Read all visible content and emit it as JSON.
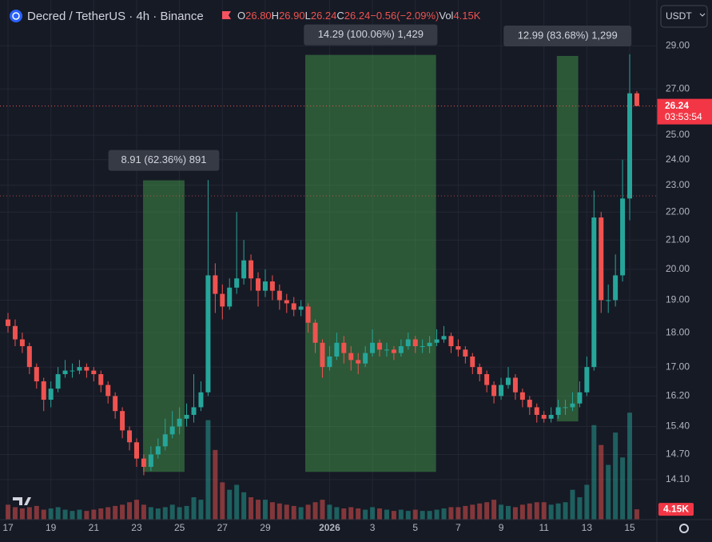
{
  "chart_data": {
    "type": "candlestick",
    "title": "Decred / TetherUS · 4h · Binance",
    "legend": [
      {
        "key": "O",
        "value": {
          "value": 26.8,
          "label": "26.80"
        }
      },
      {
        "key": "H",
        "value": {
          "value": 26.9,
          "label": "26.90"
        }
      },
      {
        "key": "L",
        "value": {
          "value": 26.24,
          "label": "26.24"
        }
      },
      {
        "key": "C",
        "value": {
          "value": 26.24,
          "label": "26.24"
        }
      }
    ],
    "change": {
      "value": -0.56,
      "label": "−0.56"
    },
    "change_pct": {
      "value": -2.09,
      "label": "(−2.09%)"
    },
    "volume_key": "Vol",
    "volume_last": {
      "value": 4150,
      "label": "4.15K"
    },
    "currency": "USDT",
    "open": [
      18.4,
      18.2,
      17.8,
      17.6,
      17.0,
      16.6,
      16.1,
      16.4,
      16.8,
      16.9,
      16.9,
      17.0,
      16.9,
      16.8,
      16.5,
      16.2,
      15.8,
      15.3,
      15.0,
      14.6,
      14.4,
      14.7,
      14.9,
      15.2,
      15.4,
      15.6,
      15.7,
      15.9,
      16.3,
      19.8,
      19.2,
      18.8,
      19.4,
      19.7,
      20.3,
      19.7,
      19.3,
      19.6,
      19.3,
      19.0,
      18.9,
      18.7,
      18.8,
      18.3,
      17.7,
      17.0,
      17.3,
      17.7,
      17.4,
      17.2,
      17.1,
      17.4,
      17.7,
      17.5,
      17.5,
      17.4,
      17.6,
      17.8,
      17.6,
      17.6,
      17.7,
      17.8,
      17.9,
      17.6,
      17.5,
      17.3,
      17.0,
      16.8,
      16.5,
      16.2,
      16.5,
      16.7,
      16.3,
      16.1,
      15.9,
      15.7,
      15.6,
      15.7,
      15.9,
      15.9,
      16.0,
      16.3,
      17.0,
      21.8,
      19.0,
      19.0,
      19.8,
      22.5,
      26.8
    ],
    "high": [
      18.6,
      18.4,
      18.0,
      17.7,
      17.1,
      16.7,
      16.6,
      17.0,
      17.2,
      17.1,
      17.2,
      17.1,
      17.0,
      16.9,
      16.6,
      16.3,
      15.9,
      15.4,
      15.1,
      14.7,
      14.9,
      15.1,
      15.6,
      15.8,
      15.9,
      16.0,
      16.8,
      16.6,
      23.2,
      20.2,
      19.5,
      19.7,
      22.0,
      21.0,
      20.5,
      19.9,
      20.0,
      19.8,
      19.5,
      19.2,
      19.1,
      19.0,
      18.9,
      18.4,
      17.8,
      17.6,
      18.0,
      17.9,
      17.6,
      17.4,
      17.6,
      18.1,
      17.8,
      17.7,
      17.6,
      17.8,
      18.0,
      17.9,
      17.8,
      17.9,
      18.1,
      18.2,
      18.0,
      17.8,
      17.6,
      17.4,
      17.1,
      16.9,
      16.6,
      16.7,
      17.0,
      16.8,
      16.4,
      16.2,
      16.0,
      15.8,
      15.9,
      16.1,
      16.1,
      16.3,
      16.6,
      17.3,
      22.8,
      22.0,
      19.5,
      20.5,
      24.0,
      28.6,
      26.9
    ],
    "low": [
      18.0,
      17.6,
      17.4,
      16.8,
      16.4,
      15.8,
      15.9,
      16.3,
      16.7,
      16.7,
      16.8,
      16.7,
      16.6,
      16.3,
      16.0,
      15.6,
      15.1,
      14.8,
      14.4,
      14.2,
      14.3,
      14.6,
      14.8,
      15.1,
      15.2,
      15.4,
      15.5,
      15.8,
      16.2,
      18.6,
      18.4,
      18.7,
      19.2,
      19.5,
      19.3,
      18.8,
      19.1,
      19.0,
      18.7,
      18.6,
      18.5,
      18.5,
      18.0,
      17.4,
      16.7,
      16.9,
      17.2,
      17.1,
      16.9,
      16.8,
      17.0,
      17.3,
      17.3,
      17.3,
      17.2,
      17.3,
      17.5,
      17.4,
      17.4,
      17.4,
      17.6,
      17.7,
      17.4,
      17.3,
      17.1,
      16.8,
      16.6,
      16.3,
      16.0,
      16.1,
      16.4,
      16.1,
      15.9,
      15.7,
      15.5,
      15.5,
      15.5,
      15.6,
      15.7,
      15.8,
      15.9,
      16.2,
      16.9,
      18.6,
      18.6,
      18.8,
      19.6,
      21.7,
      26.24
    ],
    "close": [
      18.2,
      17.8,
      17.6,
      17.0,
      16.6,
      16.1,
      16.4,
      16.8,
      16.9,
      16.9,
      17.0,
      16.9,
      16.8,
      16.5,
      16.2,
      15.8,
      15.3,
      15.0,
      14.6,
      14.4,
      14.7,
      14.9,
      15.2,
      15.4,
      15.6,
      15.7,
      15.9,
      16.3,
      19.8,
      19.2,
      18.8,
      19.4,
      19.7,
      20.3,
      19.7,
      19.3,
      19.6,
      19.3,
      19.0,
      18.9,
      18.7,
      18.8,
      18.3,
      17.7,
      17.0,
      17.3,
      17.7,
      17.4,
      17.2,
      17.1,
      17.4,
      17.7,
      17.5,
      17.5,
      17.4,
      17.6,
      17.8,
      17.6,
      17.6,
      17.7,
      17.8,
      17.9,
      17.6,
      17.5,
      17.3,
      17.0,
      16.8,
      16.5,
      16.2,
      16.5,
      16.7,
      16.3,
      16.1,
      15.9,
      15.7,
      15.6,
      15.7,
      15.9,
      15.9,
      16.0,
      16.3,
      17.0,
      21.8,
      19.0,
      19.0,
      19.8,
      22.5,
      26.8,
      26.24
    ],
    "volume": [
      6000,
      5000,
      4500,
      5000,
      5500,
      4000,
      4500,
      5000,
      4000,
      3500,
      4000,
      3500,
      4000,
      4500,
      5000,
      5500,
      6000,
      7000,
      8000,
      6000,
      5000,
      4500,
      5000,
      6000,
      5000,
      5500,
      9000,
      8000,
      40000,
      28000,
      15000,
      12000,
      14000,
      11000,
      9000,
      8000,
      8000,
      7000,
      6500,
      6000,
      5500,
      5000,
      6000,
      7000,
      8000,
      6000,
      5000,
      4500,
      5000,
      4500,
      4000,
      5000,
      4500,
      4000,
      3500,
      4000,
      3500,
      4000,
      3500,
      3500,
      4000,
      4500,
      5000,
      5000,
      5500,
      6000,
      6500,
      7000,
      8000,
      6000,
      5500,
      5000,
      6000,
      6500,
      7000,
      7000,
      6000,
      6500,
      7000,
      12000,
      9000,
      14000,
      38000,
      30000,
      22000,
      35000,
      25000,
      43000,
      4150
    ],
    "colors": {
      "up": "#26a69a",
      "down": "#ef5350"
    },
    "xlim": [
      -1.12,
      90.8
    ],
    "xticks": [
      {
        "value": 0,
        "label": "17"
      },
      {
        "value": 6,
        "label": "19"
      },
      {
        "value": 12,
        "label": "21"
      },
      {
        "value": 18,
        "label": "23"
      },
      {
        "value": 24,
        "label": "25"
      },
      {
        "value": 30,
        "label": "27"
      },
      {
        "value": 36,
        "label": "29"
      },
      {
        "value": 45,
        "label": "2026"
      },
      {
        "value": 51,
        "label": "3"
      },
      {
        "value": 57,
        "label": "5"
      },
      {
        "value": 63,
        "label": "7"
      },
      {
        "value": 69,
        "label": "9"
      },
      {
        "value": 75,
        "label": "11"
      },
      {
        "value": 81,
        "label": "13"
      },
      {
        "value": 87,
        "label": "15"
      }
    ],
    "ylim": [
      13.19,
      31.3
    ],
    "log_scale": true,
    "grid": true,
    "yticks": [
      {
        "value": 29,
        "label": "29.00"
      },
      {
        "value": 27,
        "label": "27.00"
      },
      {
        "value": 25,
        "label": "25.00"
      },
      {
        "value": 24,
        "label": "24.00"
      },
      {
        "value": 23,
        "label": "23.00"
      },
      {
        "value": 22,
        "label": "22.00"
      },
      {
        "value": 21,
        "label": "21.00"
      },
      {
        "value": 20,
        "label": "20.00"
      },
      {
        "value": 19,
        "label": "19.00"
      },
      {
        "value": 18,
        "label": "18.00"
      },
      {
        "value": 17,
        "label": "17.00"
      },
      {
        "value": 16.2,
        "label": "16.20"
      },
      {
        "value": 15.4,
        "label": "15.40"
      },
      {
        "value": 14.7,
        "label": "14.70"
      },
      {
        "value": 14.1,
        "label": "14.10"
      }
    ],
    "y2lim": [
      0,
      45000
    ],
    "y2ticks": [
      {
        "value": 4150,
        "label": "4.15K"
      }
    ],
    "last_price": {
      "value": 26.24,
      "label": "26.24"
    },
    "countdown": "03:53:54",
    "reference_line": 22.6,
    "measurement_color": "#4caf50",
    "measurements": [
      {
        "label": "8.91 (62.36%) 891",
        "x_start": 18.9,
        "x_end": 24.7,
        "low": 14.28,
        "high": 23.19
      },
      {
        "label": "14.29 (100.06%) 1,429",
        "x_start": 41.6,
        "x_end": 59.9,
        "low": 14.28,
        "high": 28.57
      },
      {
        "label": "12.99 (83.68%) 1,299",
        "x_start": 76.8,
        "x_end": 79.8,
        "low": 15.53,
        "high": 28.52
      }
    ]
  }
}
